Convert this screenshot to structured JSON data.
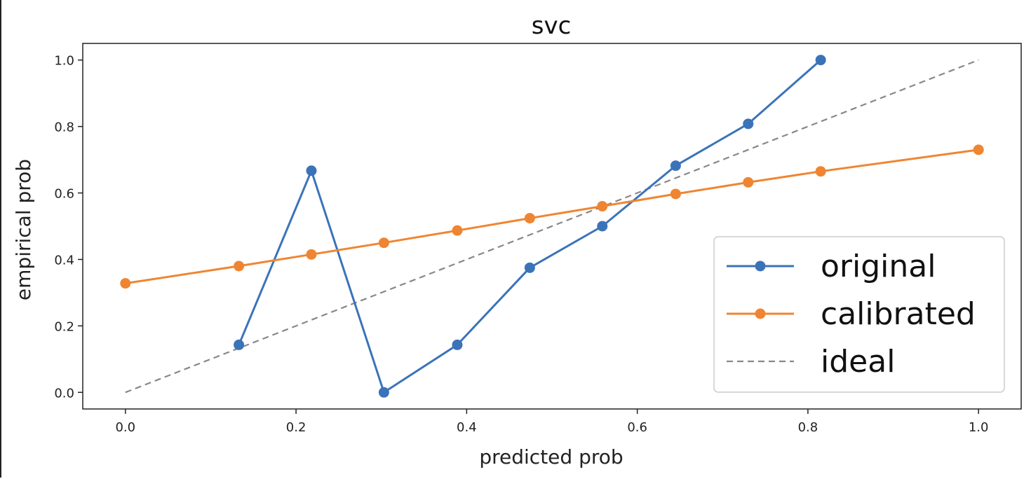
{
  "chart_data": {
    "type": "line",
    "title": "svc",
    "xlabel": "predicted prob",
    "ylabel": "empirical prob",
    "xlim": [
      -0.05,
      1.05
    ],
    "ylim": [
      -0.05,
      1.05
    ],
    "xticks": [
      "0.0",
      "0.2",
      "0.4",
      "0.6",
      "0.8",
      "1.0"
    ],
    "yticks": [
      "0.0",
      "0.2",
      "0.4",
      "0.6",
      "0.8",
      "1.0"
    ],
    "grid": false,
    "legend_position": "lower-right",
    "series": [
      {
        "name": "original",
        "color": "#3b73b9",
        "style": "solid",
        "marker": true,
        "points": [
          [
            0.133,
            0.143
          ],
          [
            0.218,
            0.667
          ],
          [
            0.303,
            0.0
          ],
          [
            0.389,
            0.143
          ],
          [
            0.474,
            0.375
          ],
          [
            0.559,
            0.5
          ],
          [
            0.645,
            0.682
          ],
          [
            0.73,
            0.808
          ],
          [
            0.815,
            1.0
          ]
        ]
      },
      {
        "name": "calibrated",
        "color": "#ef8532",
        "style": "solid",
        "marker": true,
        "points": [
          [
            0.0,
            0.328
          ],
          [
            0.133,
            0.38
          ],
          [
            0.218,
            0.415
          ],
          [
            0.303,
            0.45
          ],
          [
            0.389,
            0.487
          ],
          [
            0.474,
            0.524
          ],
          [
            0.559,
            0.56
          ],
          [
            0.645,
            0.597
          ],
          [
            0.73,
            0.632
          ],
          [
            0.815,
            0.665
          ],
          [
            1.0,
            0.73
          ]
        ]
      },
      {
        "name": "ideal",
        "color": "#888888",
        "style": "dashed",
        "marker": false,
        "points": [
          [
            0.0,
            0.0
          ],
          [
            1.0,
            1.0
          ]
        ]
      }
    ]
  }
}
